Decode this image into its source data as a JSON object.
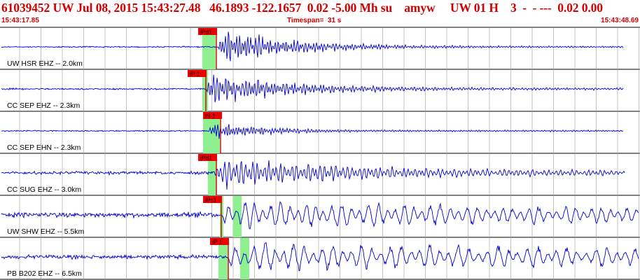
{
  "header": {
    "title": "61039452 UW Jul 08, 2015 15:43:27.48   46.1893 -122.1657  0.02 -5.00 Mh su    amyw     UW 01 H    3  -  - ---  0.02 0.00",
    "start_time": "15:43:17.85",
    "timespan": "Timespan=  31 s",
    "end_time": "15:43:48.69"
  },
  "colors": {
    "header_text": "#d40000",
    "trace": "#0000cc",
    "pick_line": "#cc0000",
    "pick_window": "#8ef08e",
    "pick_flag": "#ee0000",
    "grid": "#000000"
  },
  "traces": [
    {
      "id": "uw-hsr-ehz",
      "label": "UW HSR EHZ -- 2.0km",
      "pick": "iPd1",
      "amplitude_level": "high"
    },
    {
      "id": "cc-sep-ehz",
      "label": "CC SEP EHZ -- 2.3km",
      "pick": "iP 1",
      "amplitude_level": "high"
    },
    {
      "id": "cc-sep-ehn",
      "label": "CC SEP EHN -- 2.3km",
      "pick": "iS 1",
      "amplitude_level": "medium"
    },
    {
      "id": "cc-sug-ehz",
      "label": "CC SUG EHZ -- 3.0km",
      "pick": "iPd1",
      "amplitude_level": "high"
    },
    {
      "id": "uw-shw-ehz",
      "label": "UW SHW EHZ -- 5.5km",
      "pick": "iPc1",
      "amplitude_level": "high"
    },
    {
      "id": "pb-b202-ehz",
      "label": "PB B202 EHZ -- 6.5km",
      "pick": "iP 1",
      "amplitude_level": "high"
    }
  ]
}
